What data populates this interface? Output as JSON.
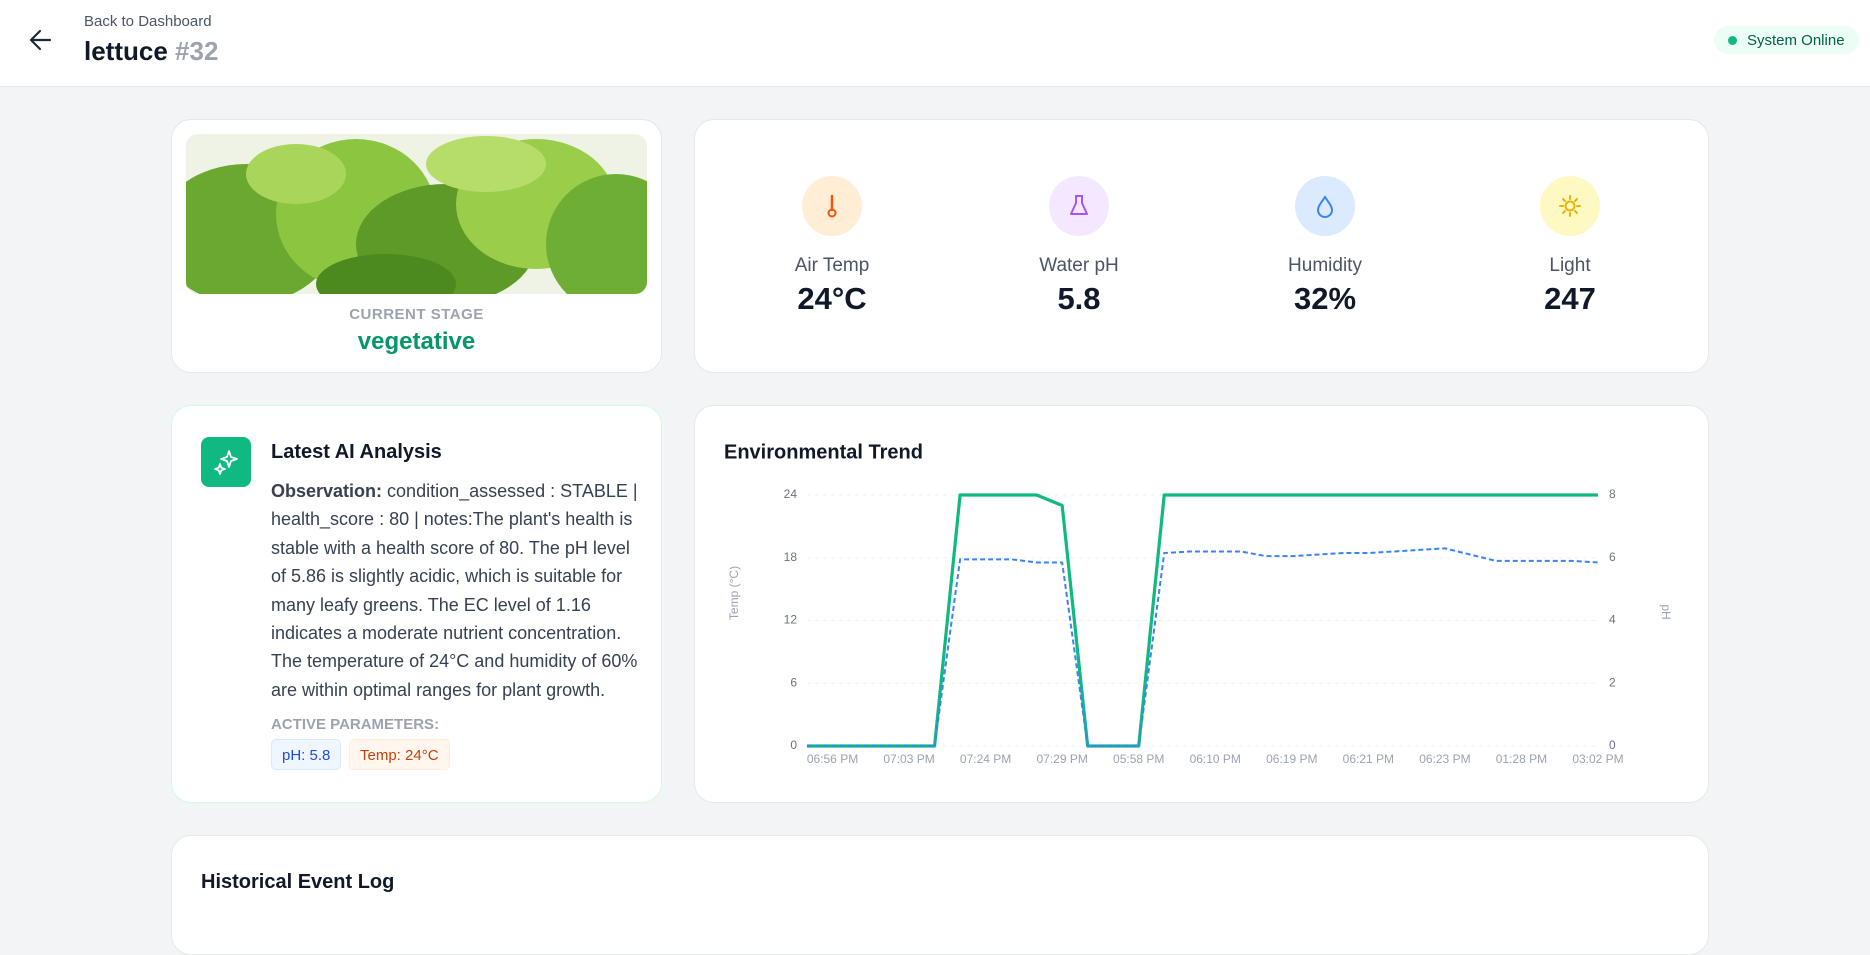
{
  "header": {
    "back": "Back to Dashboard",
    "title": "lettuce",
    "id": "#32",
    "status": "System Online"
  },
  "plant": {
    "stage_label": "CURRENT STAGE",
    "stage": "vegetative"
  },
  "stats": [
    {
      "label": "Air Temp",
      "value": "24°C"
    },
    {
      "label": "Water pH",
      "value": "5.8"
    },
    {
      "label": "Humidity",
      "value": "32%"
    },
    {
      "label": "Light",
      "value": "247"
    }
  ],
  "analysis": {
    "title": "Latest AI Analysis",
    "observation_label": "Observation:",
    "observation": "condition_assessed : STABLE | health_score : 80 | notes:The plant's health is stable with a health score of 80. The pH level of 5.86 is slightly acidic, which is suitable for many leafy greens. The EC level of 1.16 indicates a moderate nutrient concentration. The temperature of 24°C and humidity of 60% are within optimal ranges for plant growth.",
    "params_label": "ACTIVE PARAMETERS:",
    "params": [
      "pH: 5.8",
      "Temp: 24°C"
    ]
  },
  "chart_data": {
    "type": "line",
    "title": "Environmental Trend",
    "y_label": "Temp (°C)",
    "y2_label": "pH",
    "categories": [
      null,
      "06:56 PM",
      null,
      null,
      "07:03 PM",
      null,
      null,
      "07:24 PM",
      null,
      null,
      "07:29 PM",
      null,
      null,
      "05:58 PM",
      null,
      null,
      "06:10 PM",
      null,
      null,
      "06:19 PM",
      null,
      null,
      "06:21 PM",
      null,
      null,
      "06:23 PM",
      null,
      null,
      "01:28 PM",
      null,
      null,
      "03:02 PM"
    ],
    "series": [
      {
        "color": "#10b981",
        "values": [
          0,
          0,
          0,
          0,
          0,
          0,
          24,
          24,
          24,
          24,
          23,
          0,
          0,
          0,
          24,
          24,
          24,
          24,
          24,
          24,
          24,
          24,
          24,
          24,
          24,
          24,
          24,
          24,
          24,
          24,
          24,
          24
        ]
      },
      {
        "color": "#3b82f6",
        "dash": true,
        "axis": "y2",
        "values": [
          0,
          0,
          0,
          0,
          0,
          0,
          5.95,
          5.95,
          5.95,
          5.85,
          5.85,
          0,
          0,
          0,
          6.15,
          6.2,
          6.2,
          6.2,
          6.05,
          6.05,
          6.1,
          6.15,
          6.15,
          6.2,
          6.25,
          6.3,
          6.1,
          5.9,
          5.9,
          5.9,
          5.9,
          5.85
        ]
      }
    ],
    "ylim": [
      0,
      24
    ],
    "yticks": [
      0,
      6,
      12,
      18,
      24
    ],
    "y2lim": [
      0,
      8
    ],
    "y2ticks": [
      0,
      2,
      4,
      6,
      8
    ],
    "grid": true
  },
  "log": {
    "title": "Historical Event Log"
  }
}
